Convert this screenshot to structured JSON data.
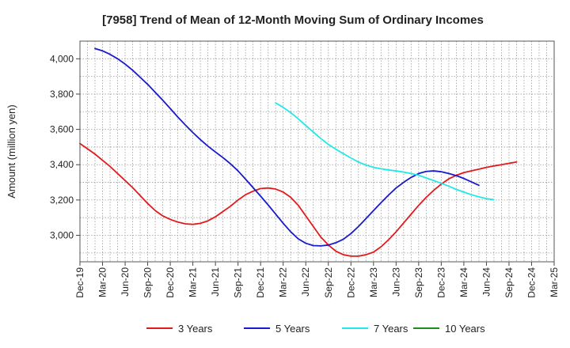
{
  "chart_data": {
    "type": "line",
    "title": "[7958]  Trend of Mean of 12-Month Moving Sum of Ordinary Incomes",
    "xlabel": "",
    "ylabel": "Amount (million yen)",
    "ylim": [
      2850,
      4100
    ],
    "yticks": [
      3000,
      3200,
      3400,
      3600,
      3800,
      4000
    ],
    "ytick_labels": [
      "3,000",
      "3,200",
      "3,400",
      "3,600",
      "3,800",
      "4,000"
    ],
    "x_start": "Dec-19",
    "x_months": 63,
    "xtick_labels": [
      "Dec-19",
      "Mar-20",
      "Jun-20",
      "Sep-20",
      "Dec-20",
      "Mar-21",
      "Jun-21",
      "Sep-21",
      "Dec-21",
      "Mar-22",
      "Jun-22",
      "Sep-22",
      "Dec-22",
      "Mar-23",
      "Jun-23",
      "Sep-23",
      "Dec-23",
      "Mar-24",
      "Jun-24",
      "Sep-24",
      "Dec-24",
      "Mar-25"
    ],
    "grid": true,
    "legend": "bottom",
    "series": [
      {
        "name": "3 Years",
        "color": "#e31a1c",
        "start_month": 0,
        "values": [
          3520,
          3490,
          3460,
          3425,
          3390,
          3350,
          3310,
          3270,
          3225,
          3180,
          3140,
          3110,
          3090,
          3075,
          3065,
          3062,
          3068,
          3082,
          3105,
          3135,
          3165,
          3200,
          3230,
          3250,
          3265,
          3268,
          3262,
          3245,
          3215,
          3170,
          3110,
          3050,
          2990,
          2945,
          2910,
          2890,
          2882,
          2882,
          2890,
          2905,
          2935,
          2975,
          3020,
          3070,
          3120,
          3170,
          3215,
          3255,
          3290,
          3320,
          3340,
          3355,
          3365,
          3375,
          3385,
          3393,
          3400,
          3408,
          3415
        ]
      },
      {
        "name": "5 Years",
        "color": "#1a1acd",
        "start_month": 2,
        "values": [
          4058,
          4045,
          4025,
          4000,
          3970,
          3935,
          3895,
          3855,
          3810,
          3765,
          3718,
          3670,
          3625,
          3582,
          3542,
          3505,
          3472,
          3440,
          3405,
          3365,
          3318,
          3270,
          3222,
          3172,
          3120,
          3068,
          3020,
          2980,
          2955,
          2942,
          2940,
          2945,
          2958,
          2978,
          3010,
          3050,
          3095,
          3140,
          3185,
          3228,
          3268,
          3300,
          3328,
          3350,
          3362,
          3365,
          3360,
          3350,
          3338,
          3322,
          3303,
          3283
        ]
      },
      {
        "name": "7 Years",
        "color": "#22e8e8",
        "start_month": 26,
        "values": [
          3750,
          3725,
          3695,
          3660,
          3622,
          3585,
          3548,
          3515,
          3488,
          3462,
          3438,
          3415,
          3398,
          3385,
          3377,
          3370,
          3365,
          3358,
          3350,
          3340,
          3325,
          3310,
          3295,
          3278,
          3260,
          3245,
          3230,
          3218,
          3208,
          3202
        ]
      },
      {
        "name": "10 Years",
        "color": "#1e8c1e",
        "start_month": 0,
        "values": []
      }
    ]
  }
}
